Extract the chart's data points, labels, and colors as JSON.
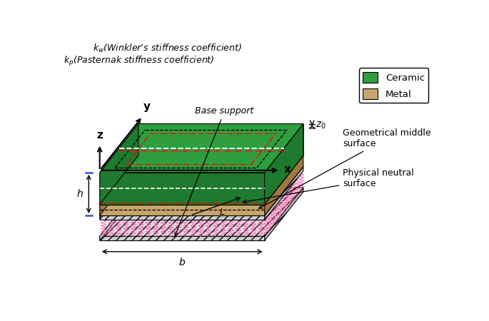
{
  "fig_width": 6.85,
  "fig_height": 4.5,
  "dpi": 100,
  "ceramic_color": "#2e9e3e",
  "metal_color": "#c8a46e",
  "ceramic_dark": "#1e7a2e",
  "metal_dark": "#a07840",
  "spring_color": "#ff69b4",
  "background": "#ffffff",
  "legend_ceramic": "Ceramic",
  "legend_metal": "Metal",
  "label_y": "y",
  "label_x": "x",
  "label_z": "z",
  "label_z0": "$z_0$",
  "label_h": "$h$",
  "label_b": "$b$",
  "label_L": "$L$",
  "label_kp": "$k_p$(Pasternak stiffness coefficient)",
  "label_kw": "$k_w$(Winkler’s stiffness coefficient)",
  "label_base": "Base support",
  "label_pns": "Physical neutral\nsurface",
  "label_gms": "Geometrical middle\nsurface"
}
